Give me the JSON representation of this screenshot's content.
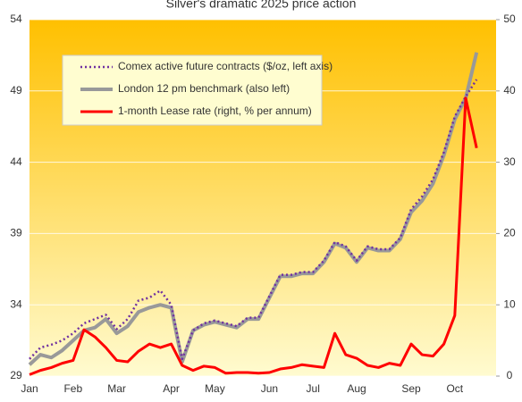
{
  "chart_data": {
    "type": "line",
    "title": "Silver's dramatic 2025 price action",
    "categories": [
      "Jan",
      null,
      null,
      null,
      "Feb",
      null,
      null,
      null,
      "Mar",
      null,
      null,
      null,
      null,
      "Apr",
      null,
      null,
      null,
      "May",
      null,
      null,
      null,
      null,
      "Jun",
      null,
      null,
      null,
      "Jul",
      null,
      null,
      null,
      "Aug",
      null,
      null,
      null,
      null,
      "Sep",
      null,
      null,
      null,
      "Oct",
      null,
      null
    ],
    "series": [
      {
        "name": "Comex active future contracts ($/oz, left axis)",
        "color": "#7030a0",
        "style": "dotted",
        "values": [
          30.2,
          31,
          31.2,
          31.5,
          32,
          32.7,
          33,
          33.3,
          32.3,
          33,
          34.3,
          34.5,
          35,
          34,
          30.2,
          32.2,
          32.7,
          32.9,
          32.7,
          32.5,
          33.1,
          33.1,
          34.6,
          36.1,
          36.1,
          36.3,
          36.3,
          37.1,
          38.4,
          38.1,
          37.1,
          38.1,
          37.9,
          37.9,
          38.7,
          40.7,
          41.6,
          42.8,
          44.7,
          47.2,
          48.6,
          49.8
        ]
      },
      {
        "name": "London 12 pm benchmark (also left)",
        "color": "#999999",
        "style": "solid",
        "values": [
          29.8,
          30.5,
          30.3,
          30.8,
          31.5,
          32.2,
          32.4,
          33,
          32,
          32.5,
          33.5,
          33.8,
          34,
          33.8,
          30,
          32.2,
          32.6,
          32.8,
          32.6,
          32.4,
          33,
          33,
          34.5,
          36,
          36,
          36.2,
          36.2,
          37,
          38.3,
          38,
          37,
          38,
          37.8,
          37.8,
          38.6,
          40.5,
          41.3,
          42.5,
          44.5,
          47,
          48.5,
          51.7
        ]
      },
      {
        "name": "1-month Lease rate (right, % per annum)",
        "color": "#ff0000",
        "style": "solid",
        "axis": "y2",
        "values": [
          0.2,
          0.8,
          1.2,
          1.8,
          2.2,
          6.5,
          5.5,
          4,
          2.2,
          2,
          3.5,
          4.5,
          4,
          4.5,
          1.5,
          0.8,
          1.4,
          1.2,
          0.4,
          0.5,
          0.5,
          0.4,
          0.5,
          1,
          1.2,
          1.6,
          1.4,
          1.2,
          6,
          3,
          2.5,
          1.5,
          1.2,
          1.8,
          1.5,
          4.5,
          3,
          2.8,
          4.5,
          8.5,
          39,
          32
        ]
      }
    ],
    "ylim": [
      29,
      54
    ],
    "yticks": [
      29,
      34,
      39,
      44,
      49,
      54
    ],
    "y2lim": [
      0,
      50
    ],
    "y2ticks": [
      0,
      10,
      20,
      30,
      40,
      50
    ],
    "grid": true,
    "legend_position": "upper left"
  }
}
